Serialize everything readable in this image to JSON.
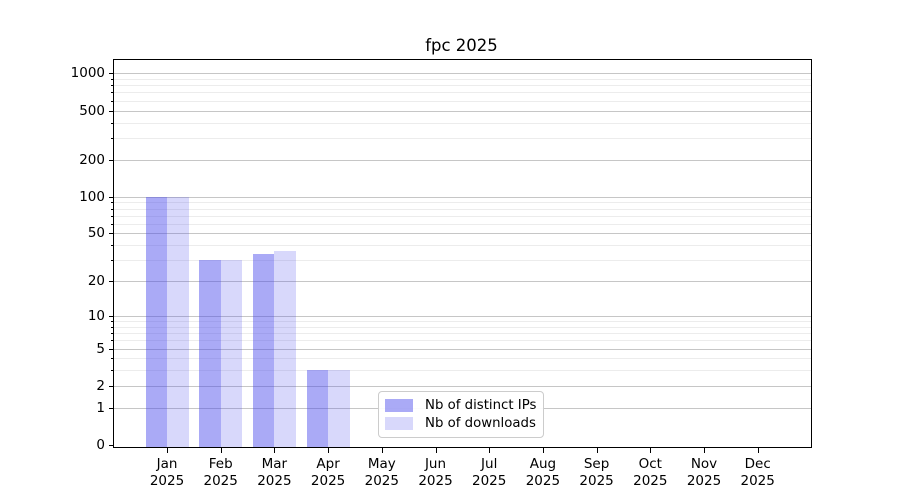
{
  "chart_data": {
    "type": "bar",
    "title": "fpc 2025",
    "categories": [
      "Jan",
      "Feb",
      "Mar",
      "Apr",
      "May",
      "Jun",
      "Jul",
      "Aug",
      "Sep",
      "Oct",
      "Nov",
      "Dec"
    ],
    "x_tick_year": "2025",
    "series": [
      {
        "name": "Nb of distinct IPs",
        "color": "rgba(70,70,235,0.46)",
        "values": [
          100,
          30,
          34,
          3,
          0,
          0,
          0,
          0,
          0,
          0,
          0,
          0
        ]
      },
      {
        "name": "Nb of downloads",
        "color": "rgba(70,70,235,0.21)",
        "values": [
          100,
          30,
          36,
          3,
          0,
          0,
          0,
          0,
          0,
          0,
          0,
          0
        ]
      }
    ],
    "y_axis": {
      "scale": "log10(value+1)",
      "major_ticks": [
        1000,
        500,
        200,
        100,
        50,
        20,
        10,
        5,
        2,
        1,
        0
      ],
      "minor_ticks": [
        900,
        800,
        700,
        600,
        400,
        300,
        90,
        80,
        70,
        60,
        40,
        30,
        9,
        8,
        7,
        6,
        4,
        3
      ],
      "ylim": [
        0,
        1280
      ]
    },
    "grid": true,
    "legend_position": "lower center-right",
    "colors": {
      "major_grid": "#c6c6c6",
      "minor_grid": "#ececec",
      "frame": "#000000",
      "text": "#000000",
      "background": "#ffffff"
    }
  }
}
